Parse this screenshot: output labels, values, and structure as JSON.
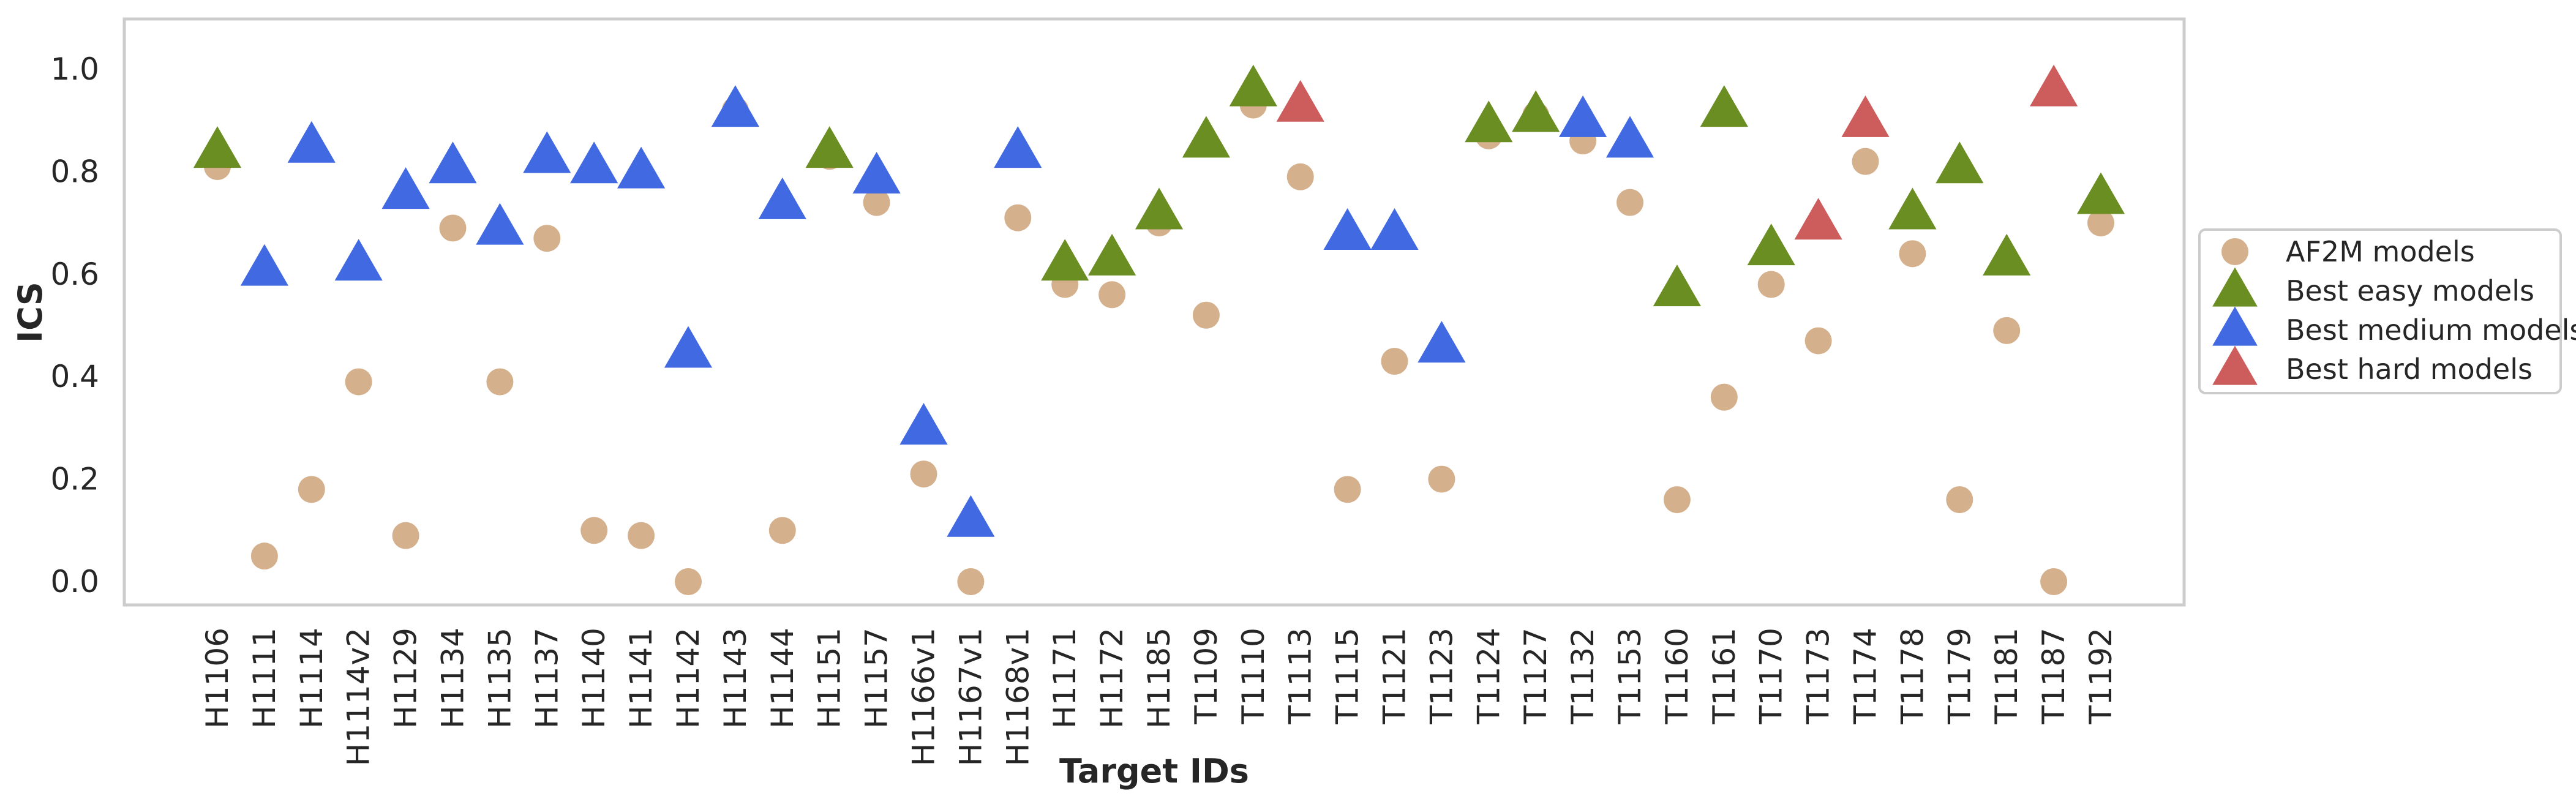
{
  "chart_data": {
    "type": "scatter",
    "xlabel": "Target IDs",
    "ylabel": "ICS",
    "ylim": [
      -0.04,
      1.1
    ],
    "yticks": [
      0.0,
      0.2,
      0.4,
      0.6,
      0.8,
      1.0
    ],
    "ytick_labels": [
      "0.0",
      "0.2",
      "0.4",
      "0.6",
      "0.8",
      "1.0"
    ],
    "grid": false,
    "legend_position": "right-outside",
    "categories": [
      "H1106",
      "H1111",
      "H1114",
      "H1114v2",
      "H1129",
      "H1134",
      "H1135",
      "H1137",
      "H1140",
      "H1141",
      "H1142",
      "H1143",
      "H1144",
      "H1151",
      "H1157",
      "H1166v1",
      "H1167v1",
      "H1168v1",
      "H1171",
      "H1172",
      "H1185",
      "T1109",
      "T1110",
      "T1113",
      "T1115",
      "T1121",
      "T1123",
      "T1124",
      "T1127",
      "T1132",
      "T1153",
      "T1160",
      "T1161",
      "T1170",
      "T1173",
      "T1174",
      "T1178",
      "T1179",
      "T1181",
      "T1187",
      "T1192"
    ],
    "series": [
      {
        "name": "AF2M models",
        "marker": "circle",
        "color": "#d4b08c",
        "values": [
          0.81,
          0.05,
          0.18,
          0.39,
          0.09,
          0.69,
          0.39,
          0.67,
          0.1,
          0.09,
          0.0,
          0.92,
          0.1,
          0.83,
          0.74,
          0.21,
          0.0,
          0.71,
          0.58,
          0.56,
          0.7,
          0.52,
          0.93,
          0.79,
          0.18,
          0.43,
          0.2,
          0.87,
          0.91,
          0.86,
          0.74,
          0.16,
          0.36,
          0.58,
          0.47,
          0.82,
          0.64,
          0.16,
          0.49,
          0.0,
          0.7
        ]
      },
      {
        "name": "Best easy models",
        "marker": "triangle",
        "color": "#6b8e23",
        "points": [
          {
            "x": "H1106",
            "y": 0.84
          },
          {
            "x": "H1151",
            "y": 0.84
          },
          {
            "x": "H1171",
            "y": 0.62
          },
          {
            "x": "H1172",
            "y": 0.63
          },
          {
            "x": "H1185",
            "y": 0.72
          },
          {
            "x": "T1109",
            "y": 0.86
          },
          {
            "x": "T1110",
            "y": 0.96
          },
          {
            "x": "T1124",
            "y": 0.89
          },
          {
            "x": "T1127",
            "y": 0.91
          },
          {
            "x": "T1160",
            "y": 0.57
          },
          {
            "x": "T1161",
            "y": 0.92
          },
          {
            "x": "T1170",
            "y": 0.65
          },
          {
            "x": "T1178",
            "y": 0.72
          },
          {
            "x": "T1179",
            "y": 0.81
          },
          {
            "x": "T1181",
            "y": 0.63
          },
          {
            "x": "T1192",
            "y": 0.75
          }
        ]
      },
      {
        "name": "Best medium models",
        "marker": "triangle",
        "color": "#4169e1",
        "points": [
          {
            "x": "H1111",
            "y": 0.61
          },
          {
            "x": "H1114",
            "y": 0.85
          },
          {
            "x": "H1114v2",
            "y": 0.62
          },
          {
            "x": "H1129",
            "y": 0.76
          },
          {
            "x": "H1134",
            "y": 0.81
          },
          {
            "x": "H1135",
            "y": 0.69
          },
          {
            "x": "H1137",
            "y": 0.83
          },
          {
            "x": "H1140",
            "y": 0.81
          },
          {
            "x": "H1141",
            "y": 0.8
          },
          {
            "x": "H1142",
            "y": 0.45
          },
          {
            "x": "H1143",
            "y": 0.92
          },
          {
            "x": "H1144",
            "y": 0.74
          },
          {
            "x": "H1157",
            "y": 0.79
          },
          {
            "x": "H1166v1",
            "y": 0.3
          },
          {
            "x": "H1167v1",
            "y": 0.12
          },
          {
            "x": "H1168v1",
            "y": 0.84
          },
          {
            "x": "T1115",
            "y": 0.68
          },
          {
            "x": "T1121",
            "y": 0.68
          },
          {
            "x": "T1123",
            "y": 0.46
          },
          {
            "x": "T1132",
            "y": 0.9
          },
          {
            "x": "T1153",
            "y": 0.86
          }
        ]
      },
      {
        "name": "Best hard models",
        "marker": "triangle",
        "color": "#cd5c5c",
        "points": [
          {
            "x": "T1113",
            "y": 0.93
          },
          {
            "x": "T1173",
            "y": 0.7
          },
          {
            "x": "T1174",
            "y": 0.9
          },
          {
            "x": "T1187",
            "y": 0.96
          }
        ]
      }
    ]
  }
}
